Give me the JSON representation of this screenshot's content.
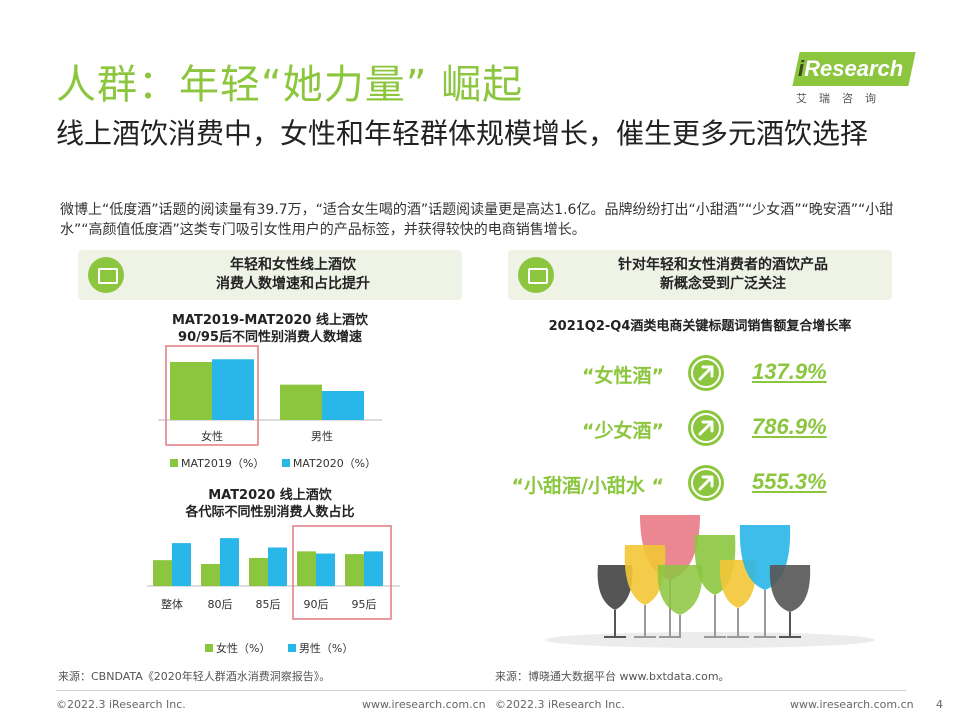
{
  "header": {
    "title": "人群：年轻“她力量” 崛起",
    "subtitle": "线上酒饮消费中，女性和年轻群体规模增长，催生更多元酒饮选择",
    "intro": "微博上“低度酒”话题的阅读量有39.7万，“适合女生喝的酒”话题阅读量更是高达1.6亿。品牌纷纷打出“小甜酒”“少女酒”“晚安酒”“小甜水”“高颜值低度酒”这类专门吸引女性用户的产品标签，并获得较快的电商销售增长。"
  },
  "logo": {
    "prefix": "i",
    "text": "Research",
    "sub": "艾瑞咨询"
  },
  "left_panel": {
    "heading_line1": "年轻和女性线上酒饮",
    "heading_line2": "消费人数增速和占比提升",
    "source": "来源：CBNDATA《2020年轻人群酒水消费洞察报告》。"
  },
  "right_panel": {
    "heading_line1": "针对年轻和女性消费者的酒饮产品",
    "heading_line2": "新概念受到广泛关注",
    "chart_title": "2021Q2-Q4酒类电商关键标题词销售额复合增长率",
    "source": "来源：博晓通大数据平台  www.bxtdata.com。",
    "keywords": [
      {
        "label": "“女性酒”",
        "value": "137.9%"
      },
      {
        "label": "“少女酒”",
        "value": "786.9%"
      },
      {
        "label": "“小甜酒/小甜水 “",
        "value": "555.3%"
      }
    ]
  },
  "colors": {
    "green": "#8cc63f",
    "cyan": "#29b6e8",
    "highlight_box": "#e07a80"
  },
  "chart_data": [
    {
      "type": "bar",
      "title": "MAT2019-MAT2020 线上酒饮\n90/95后不同性别消费人数增速",
      "categories": [
        "女性",
        "男性"
      ],
      "series": [
        {
          "name": "MAT2019（%）",
          "values": [
            64,
            39
          ]
        },
        {
          "name": "MAT2020（%）",
          "values": [
            67,
            32
          ]
        }
      ],
      "ylim": [
        0,
        75
      ],
      "highlight": "女性"
    },
    {
      "type": "bar",
      "title": "MAT2020 线上酒饮\n各代际不同性别消费人数占比",
      "categories": [
        "整体",
        "80后",
        "85后",
        "90后",
        "95后"
      ],
      "series": [
        {
          "name": "女性（%）",
          "values": [
            47,
            40,
            51,
            63,
            58
          ]
        },
        {
          "name": "男性（%）",
          "values": [
            78,
            87,
            70,
            59,
            63
          ]
        }
      ],
      "ylim": [
        0,
        100
      ],
      "highlight": [
        "90后",
        "95后"
      ]
    }
  ],
  "footer": {
    "left_copyright": "©2022.3 iResearch Inc.",
    "left_url": "www.iresearch.com.cn",
    "right_copyright": "©2022.3 iResearch Inc.",
    "right_url": "www.iresearch.com.cn",
    "page": "4"
  }
}
